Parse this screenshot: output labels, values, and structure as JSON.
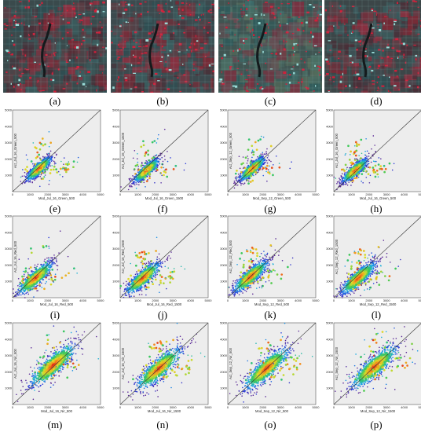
{
  "figure": {
    "rows": 4,
    "cols": 4
  },
  "panels": [
    {
      "label": "(a)",
      "kind": "image"
    },
    {
      "label": "(b)",
      "kind": "image"
    },
    {
      "label": "(c)",
      "kind": "image"
    },
    {
      "label": "(d)",
      "kind": "image"
    },
    {
      "label": "(e)",
      "kind": "scatter",
      "xlabel": "Mod_Jul_16_Green_500",
      "ylabel": "Act_Jul_16_Green_500",
      "xticks": [
        "0",
        "1000",
        "2000",
        "3000",
        "4000",
        "5000"
      ],
      "yticks": [
        "1000",
        "2000",
        "3000",
        "4000",
        "5000"
      ]
    },
    {
      "label": "(f)",
      "kind": "scatter",
      "xlabel": "Mod_Jul_16_Green_1500",
      "ylabel": "Act_Jul_16_Green_1500",
      "xticks": [
        "0",
        "1000",
        "2000",
        "3000",
        "4000",
        "5000"
      ],
      "yticks": [
        "1000",
        "2000",
        "3000",
        "4000",
        "5000"
      ]
    },
    {
      "label": "(g)",
      "kind": "scatter",
      "xlabel": "Mod_Sep_12_Green_500",
      "ylabel": "Act_Sep_12_Green_500",
      "xticks": [
        "0",
        "1000",
        "2000",
        "3000",
        "4000",
        "5000"
      ],
      "yticks": [
        "1000",
        "2000",
        "3000",
        "4000",
        "5000"
      ]
    },
    {
      "label": "(h)",
      "kind": "scatter",
      "xlabel": "Mod_Jul_16_Green_500",
      "ylabel": "Act_Jul_16_Green_500",
      "xticks": [
        "0",
        "1000",
        "2000",
        "3000",
        "4000",
        "5000"
      ],
      "yticks": [
        "1000",
        "2000",
        "3000",
        "4000",
        "5000"
      ]
    },
    {
      "label": "(i)",
      "kind": "scatter",
      "xlabel": "Mod_Jul_16_Red_500",
      "ylabel": "Act_Jul_16_Red_500",
      "xticks": [
        "0",
        "1000",
        "2000",
        "3000",
        "4000",
        "5000"
      ],
      "yticks": [
        "1000",
        "2000",
        "3000",
        "4000",
        "5000"
      ]
    },
    {
      "label": "(j)",
      "kind": "scatter",
      "xlabel": "Mod_Jul_16_Red_1500",
      "ylabel": "Act_Jul_16_Red_1500",
      "xticks": [
        "0",
        "1000",
        "2000",
        "3000",
        "4000",
        "5000"
      ],
      "yticks": [
        "1000",
        "2000",
        "3000",
        "4000",
        "5000"
      ]
    },
    {
      "label": "(k)",
      "kind": "scatter",
      "xlabel": "Mod_Sep_12_Red_500",
      "ylabel": "Act_Sep_12_Red_500",
      "xticks": [
        "0",
        "1000",
        "2000",
        "3000",
        "4000",
        "5000"
      ],
      "yticks": [
        "1000",
        "2000",
        "3000",
        "4000",
        "5000"
      ]
    },
    {
      "label": "(l)",
      "kind": "scatter",
      "xlabel": "Mod_Sep_12_Red_1500",
      "ylabel": "Act_Sep_12_Red_1500",
      "xticks": [
        "0",
        "1000",
        "2000",
        "3000",
        "4000",
        "5000"
      ],
      "yticks": [
        "1000",
        "2000",
        "3000",
        "4000",
        "5000"
      ]
    },
    {
      "label": "(m)",
      "kind": "scatter",
      "xlabel": "Mod_Jul_16_Nir_500",
      "ylabel": "Act_Jul_16_Nir_500",
      "xticks": [
        "0",
        "1000",
        "2000",
        "3000",
        "4000",
        "5000"
      ],
      "yticks": [
        "1000",
        "2000",
        "3000",
        "4000",
        "5000"
      ]
    },
    {
      "label": "(n)",
      "kind": "scatter",
      "xlabel": "Mod_Jul_16_Nir_1500",
      "ylabel": "Act_Jul_16_Nir_1500",
      "xticks": [
        "0",
        "1000",
        "2000",
        "3000",
        "4000",
        "5000"
      ],
      "yticks": [
        "1000",
        "2000",
        "3000",
        "4000",
        "5000"
      ]
    },
    {
      "label": "(o)",
      "kind": "scatter",
      "xlabel": "Mod_Sep_12_Nir_500",
      "ylabel": "Act_Sep_12_Nir_500",
      "xticks": [
        "0",
        "1000",
        "2000",
        "3000",
        "4000",
        "5000"
      ],
      "yticks": [
        "1000",
        "2000",
        "3000",
        "4000",
        "5000"
      ]
    },
    {
      "label": "(p)",
      "kind": "scatter",
      "xlabel": "Mod_Sep_12_Nir_1500",
      "ylabel": "Act_Sep_12_Nir_1500",
      "xticks": [
        "0",
        "1000",
        "2000",
        "3000",
        "4000",
        "5000"
      ],
      "yticks": [
        "1000",
        "2000",
        "3000",
        "4000",
        "5000"
      ]
    }
  ],
  "chart_data": [
    {
      "panel": "(e)",
      "type": "scatter",
      "xlim": [
        0,
        5000
      ],
      "ylim": [
        0,
        5000
      ],
      "one_to_one_line": true,
      "density_center": [
        1500,
        1400
      ],
      "spread": "narrow"
    },
    {
      "panel": "(f)",
      "type": "scatter",
      "xlim": [
        0,
        5000
      ],
      "ylim": [
        0,
        5000
      ],
      "one_to_one_line": true,
      "density_center": [
        1500,
        1300
      ],
      "spread": "narrow"
    },
    {
      "panel": "(g)",
      "type": "scatter",
      "xlim": [
        0,
        5000
      ],
      "ylim": [
        0,
        5000
      ],
      "one_to_one_line": true,
      "density_center": [
        1400,
        1400
      ],
      "spread": "narrow"
    },
    {
      "panel": "(h)",
      "type": "scatter",
      "xlim": [
        0,
        5000
      ],
      "ylim": [
        0,
        5000
      ],
      "one_to_one_line": true,
      "density_center": [
        1200,
        1300
      ],
      "spread": "narrow"
    },
    {
      "panel": "(i)",
      "type": "scatter",
      "xlim": [
        0,
        5000
      ],
      "ylim": [
        0,
        5000
      ],
      "one_to_one_line": true,
      "density_center": [
        1300,
        1200
      ],
      "spread": "medium"
    },
    {
      "panel": "(j)",
      "type": "scatter",
      "xlim": [
        0,
        5000
      ],
      "ylim": [
        0,
        5000
      ],
      "one_to_one_line": true,
      "density_center": [
        1300,
        1200
      ],
      "spread": "medium"
    },
    {
      "panel": "(k)",
      "type": "scatter",
      "xlim": [
        0,
        5000
      ],
      "ylim": [
        0,
        5000
      ],
      "one_to_one_line": true,
      "density_center": [
        1300,
        1300
      ],
      "spread": "medium"
    },
    {
      "panel": "(l)",
      "type": "scatter",
      "xlim": [
        0,
        5000
      ],
      "ylim": [
        0,
        5000
      ],
      "one_to_one_line": true,
      "density_center": [
        1400,
        1200
      ],
      "spread": "medium"
    },
    {
      "panel": "(m)",
      "type": "scatter",
      "xlim": [
        0,
        5000
      ],
      "ylim": [
        0,
        5000
      ],
      "one_to_one_line": true,
      "density_center": [
        2300,
        2400
      ],
      "spread": "wide"
    },
    {
      "panel": "(n)",
      "type": "scatter",
      "xlim": [
        0,
        5000
      ],
      "ylim": [
        0,
        5000
      ],
      "one_to_one_line": true,
      "density_center": [
        2200,
        2200
      ],
      "spread": "wide"
    },
    {
      "panel": "(o)",
      "type": "scatter",
      "xlim": [
        0,
        5000
      ],
      "ylim": [
        0,
        5000
      ],
      "one_to_one_line": true,
      "density_center": [
        2200,
        2200
      ],
      "spread": "wide"
    },
    {
      "panel": "(p)",
      "type": "scatter",
      "xlim": [
        0,
        5000
      ],
      "ylim": [
        0,
        5000
      ],
      "one_to_one_line": true,
      "density_center": [
        2300,
        2300
      ],
      "spread": "wide"
    }
  ]
}
